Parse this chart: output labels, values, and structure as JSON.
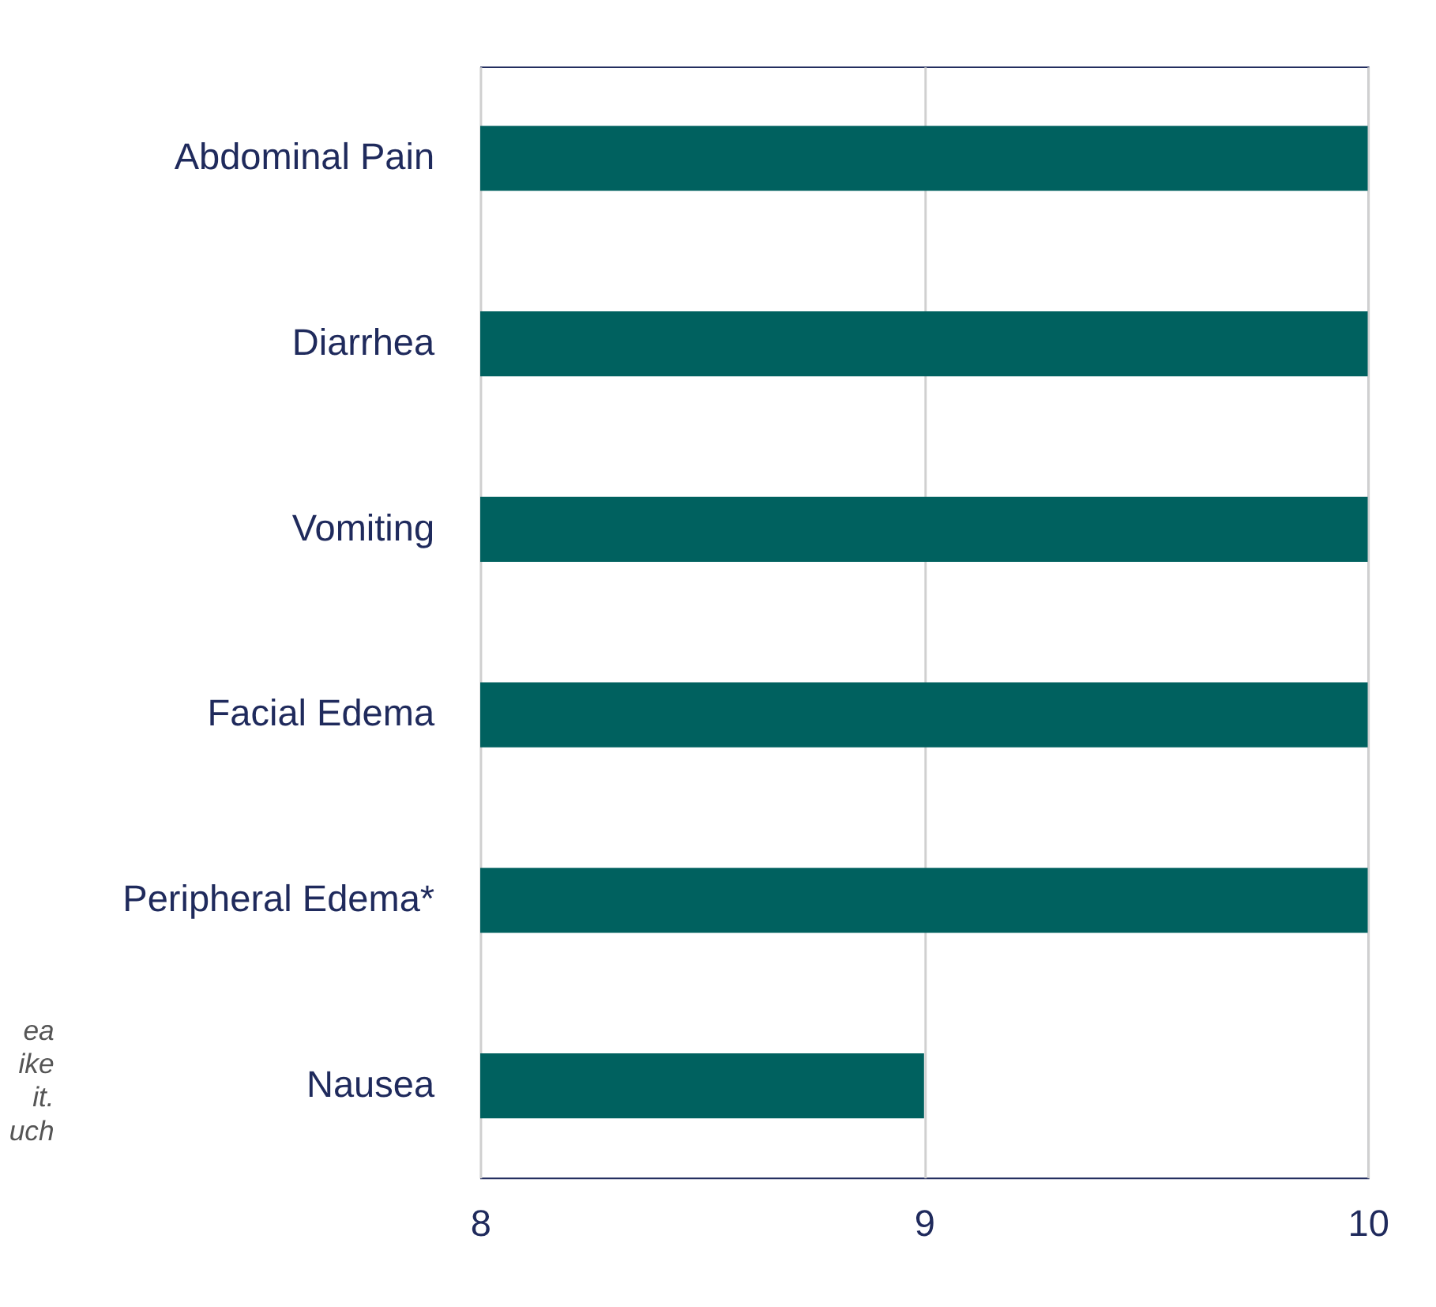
{
  "chart_data": {
    "type": "bar",
    "orientation": "horizontal",
    "categories": [
      "Abdominal Pain",
      "Diarrhea",
      "Vomiting",
      "Facial Edema",
      "Peripheral Edema*",
      "Nausea"
    ],
    "values": [
      10,
      10,
      10,
      10,
      10,
      9
    ],
    "color": "#00615f",
    "xlim": [
      8,
      10
    ],
    "xticks": [
      8,
      9,
      10
    ],
    "grid": "x",
    "annotations": [
      "ea",
      "ike",
      "it.",
      "uch"
    ]
  }
}
